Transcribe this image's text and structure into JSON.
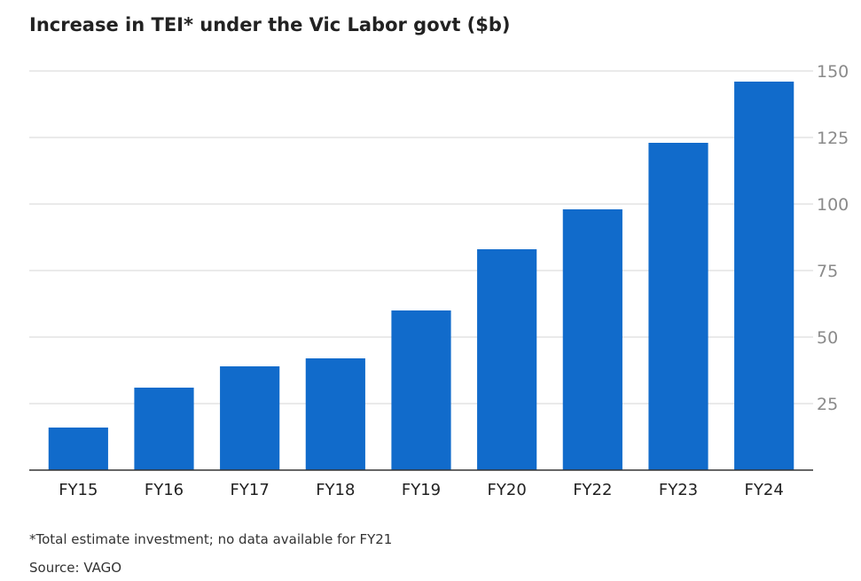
{
  "chart_data": {
    "type": "bar",
    "title": "Increase in TEI* under the Vic Labor govt ($b)",
    "categories": [
      "FY15",
      "FY16",
      "FY17",
      "FY18",
      "FY19",
      "FY20",
      "FY22",
      "FY23",
      "FY24"
    ],
    "values": [
      16,
      31,
      39,
      42,
      60,
      83,
      98,
      123,
      146
    ],
    "xlabel": "",
    "ylabel": "",
    "ylim": [
      0,
      150
    ],
    "yticks": [
      25,
      50,
      75,
      100,
      125,
      150
    ],
    "y_axis_position": "right",
    "grid": true,
    "bar_color": "#116bcb",
    "footnote": "*Total estimate investment; no data available for FY21",
    "source": "Source: VAGO"
  }
}
